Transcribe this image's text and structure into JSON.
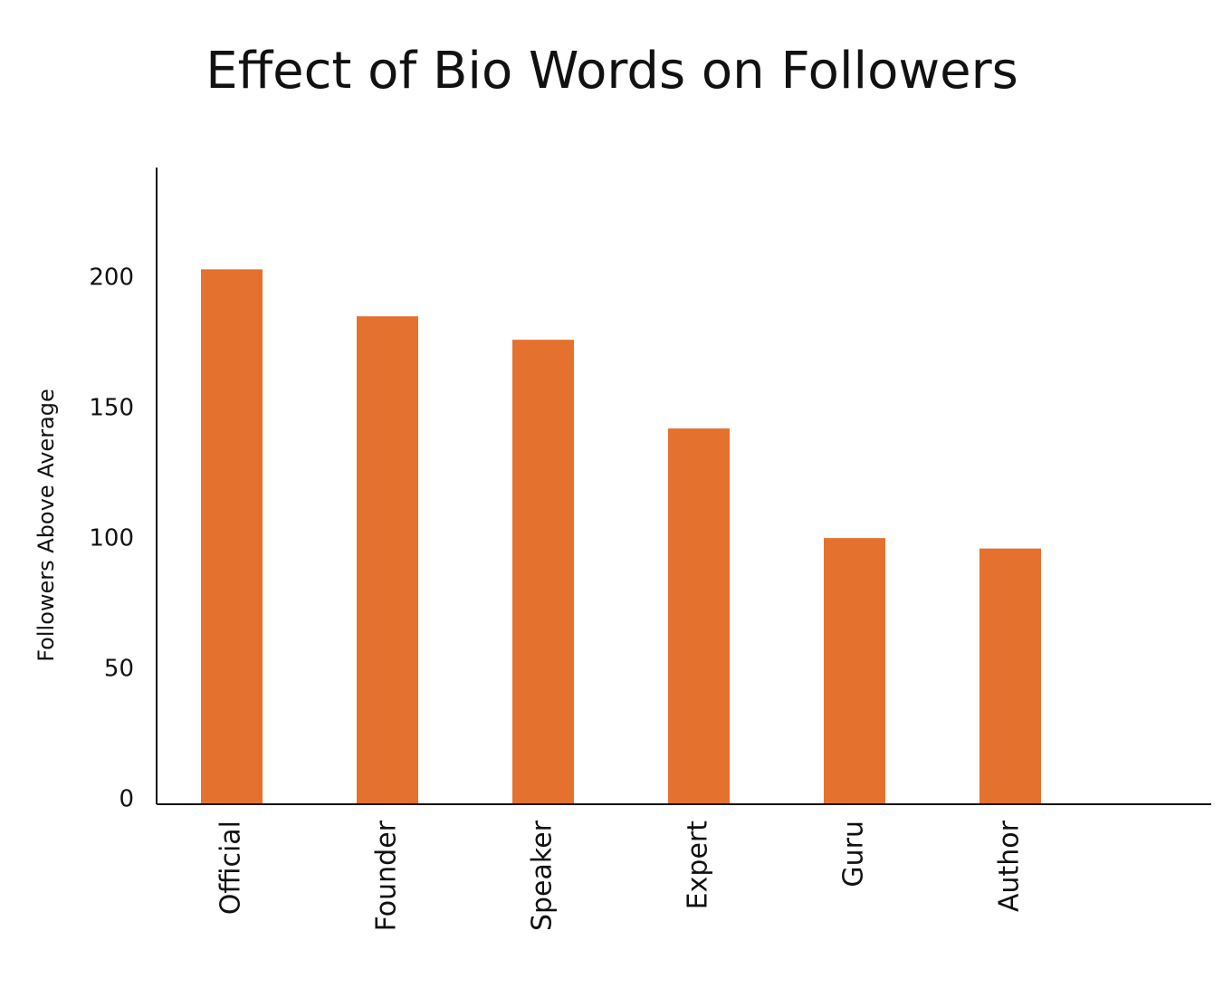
{
  "chart_data": {
    "type": "bar",
    "title": "Effect of Bio Words on Followers",
    "y_label": "Followers Above Average",
    "categories": [
      "Official",
      "Founder",
      "Speaker",
      "Expert",
      "Guru",
      "Author"
    ],
    "values": [
      205,
      187,
      178,
      144,
      102,
      98
    ],
    "color": "#e5712e",
    "ylim": [
      0,
      244
    ],
    "yticks": [
      0,
      50,
      100,
      150,
      200
    ],
    "grid": false
  }
}
